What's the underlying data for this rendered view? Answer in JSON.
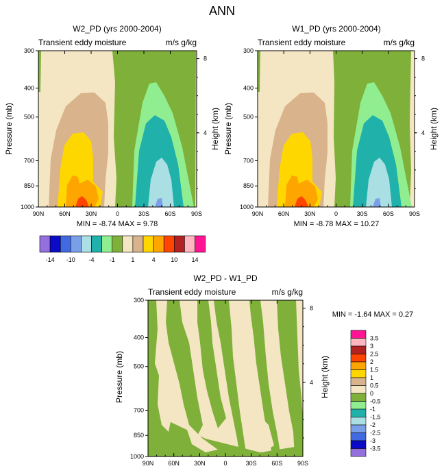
{
  "figure": {
    "title": "ANN"
  },
  "chart_data": [
    {
      "type": "heatmap",
      "title": "W2_PD (yrs 2000-2004)",
      "left_label": "Transient eddy moisture",
      "right_label": "m/s g/kg",
      "ylabel": "Pressure (mb)",
      "right_ylabel": "Height (km)",
      "y_ticks": [
        "300",
        "400",
        "500",
        "700",
        "850",
        "1000"
      ],
      "right_y_ticks": [
        "8",
        "4"
      ],
      "x_ticks": [
        "90N",
        "60N",
        "30N",
        "0",
        "30S",
        "60S",
        "90S"
      ],
      "min_max": "MIN = -8.74  MAX =  9.78",
      "min": -8.74,
      "max": 9.78,
      "xlim": [
        90,
        -90
      ],
      "ylim": [
        1000,
        300
      ]
    },
    {
      "type": "heatmap",
      "title": "W1_PD (yrs 2000-2004)",
      "left_label": "Transient eddy moisture",
      "right_label": "m/s g/kg",
      "ylabel": "Pressure (mb)",
      "right_ylabel": "Height (km)",
      "y_ticks": [
        "300",
        "400",
        "500",
        "700",
        "850",
        "1000"
      ],
      "right_y_ticks": [
        "8",
        "4"
      ],
      "x_ticks": [
        "90N",
        "60N",
        "30N",
        "0",
        "30S",
        "60S",
        "90S"
      ],
      "min_max": "MIN = -8.78  MAX = 10.27",
      "min": -8.78,
      "max": 10.27,
      "xlim": [
        90,
        -90
      ],
      "ylim": [
        1000,
        300
      ]
    },
    {
      "type": "heatmap",
      "title": "W2_PD - W1_PD",
      "left_label": "Transient eddy moisture",
      "right_label": "m/s g/kg",
      "ylabel": "Pressure (mb)",
      "right_ylabel": "Height (km)",
      "y_ticks": [
        "300",
        "400",
        "500",
        "700",
        "850",
        "1000"
      ],
      "right_y_ticks": [
        "8",
        "4"
      ],
      "x_ticks": [
        "90N",
        "60N",
        "30N",
        "0",
        "30S",
        "60S",
        "90S"
      ],
      "min_max": "MIN = -1.64  MAX =  0.27",
      "min": -1.64,
      "max": 0.27,
      "xlim": [
        90,
        -90
      ],
      "ylim": [
        1000,
        300
      ]
    }
  ],
  "colorbar_top": {
    "labels": [
      "-14",
      "-10",
      "-4",
      "-1",
      "1",
      "4",
      "10",
      "14"
    ],
    "colors": [
      "#9370db",
      "#0a0ac8",
      "#4169e1",
      "#7b9ee8",
      "#aadfe3",
      "#20b2aa",
      "#90ee90",
      "#7fb13a",
      "#f5e6c3",
      "#d9b38c",
      "#ffd700",
      "#ffa500",
      "#ff4500",
      "#b22222",
      "#ffb6c1",
      "#ff1493"
    ]
  },
  "colorbar_diff": {
    "labels": [
      "3.5",
      "3",
      "2.5",
      "2",
      "1.5",
      "1",
      "0.5",
      "0",
      "-0.5",
      "-1",
      "-1.5",
      "-2",
      "-2.5",
      "-3",
      "-3.5"
    ],
    "colors": [
      "#ff1493",
      "#ffb6c1",
      "#b22222",
      "#ff4500",
      "#ffa500",
      "#ffd700",
      "#d9b38c",
      "#f5e6c3",
      "#7fb13a",
      "#90ee90",
      "#20b2aa",
      "#aadfe3",
      "#7b9ee8",
      "#4169e1",
      "#0a0ac8",
      "#9370db"
    ]
  }
}
